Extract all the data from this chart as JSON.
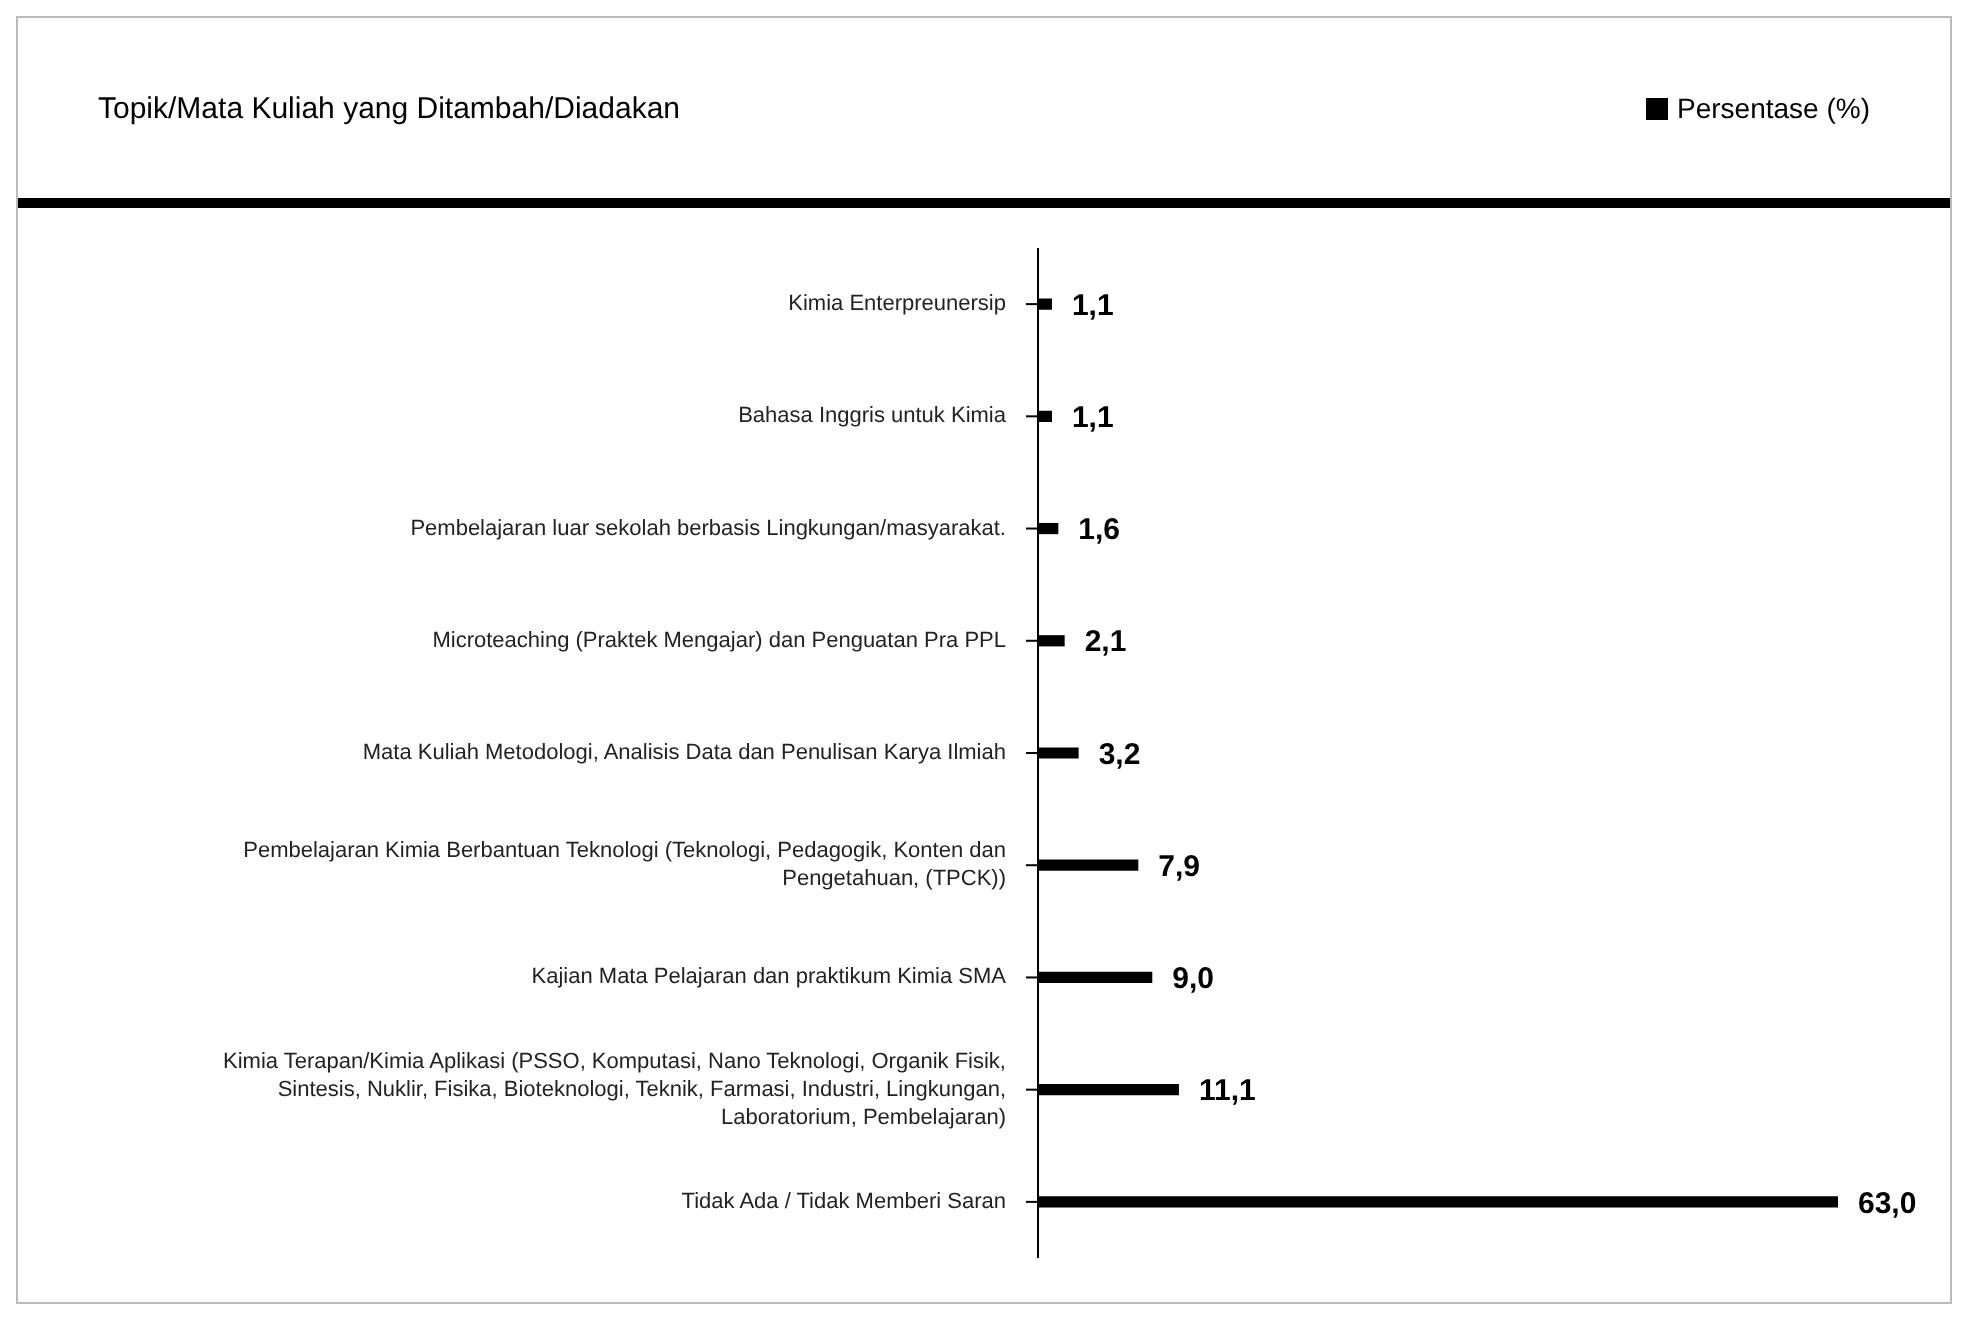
{
  "chart_data": {
    "type": "bar",
    "orientation": "horizontal",
    "title": "Topik/Mata Kuliah yang Ditambah/Diadakan",
    "legend": "top right",
    "categories": [
      "Kimia Enterpreunersip",
      "Bahasa Inggris untuk Kimia",
      "Pembelajaran luar sekolah berbasis Lingkungan/masyarakat.",
      "Microteaching (Praktek Mengajar) dan Penguatan Pra PPL",
      "Mata Kuliah Metodologi, Analisis Data dan Penulisan Karya Ilmiah",
      "Pembelajaran Kimia Berbantuan Teknologi (Teknologi, Pedagogik, Konten dan Pengetahuan, (TPCK))",
      "Kajian Mata Pelajaran dan praktikum Kimia SMA",
      "Kimia Terapan/Kimia Aplikasi (PSSO, Komputasi, Nano Teknologi, Organik Fisik, Sintesis, Nuklir, Fisika, Bioteknologi, Teknik, Farmasi, Industri, Lingkungan, Laboratorium, Pembelajaran)",
      "Tidak Ada / Tidak Memberi Saran"
    ],
    "series": [
      {
        "name": "Persentase (%)",
        "color": "#000000",
        "values": [
          1.1,
          1.1,
          1.6,
          2.1,
          3.2,
          7.9,
          9.0,
          11.1,
          63.0
        ],
        "value_labels": [
          "1,1",
          "1,1",
          "1,6",
          "2,1",
          "3,2",
          "7,9",
          "9,0",
          "11,1",
          "63,0"
        ]
      }
    ]
  }
}
